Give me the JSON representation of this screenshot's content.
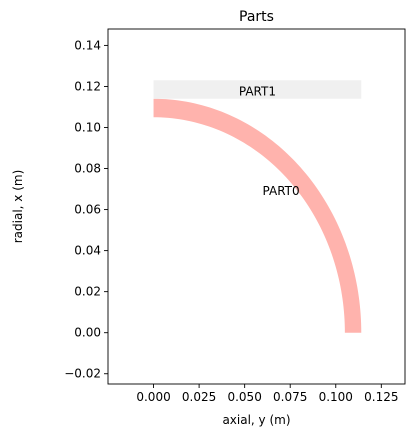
{
  "chart_data": {
    "type": "area",
    "title": "Parts",
    "xlabel": "axial, y (m)",
    "ylabel": "radial, x (m)",
    "xlim": [
      -0.025,
      0.138
    ],
    "ylim": [
      -0.025,
      0.148
    ],
    "xticks": [
      0.0,
      0.025,
      0.05,
      0.075,
      0.1,
      0.125
    ],
    "xtick_labels": [
      "0.000",
      "0.025",
      "0.050",
      "0.075",
      "0.100",
      "0.125"
    ],
    "yticks": [
      -0.02,
      0.0,
      0.02,
      0.04,
      0.06,
      0.08,
      0.1,
      0.12,
      0.14
    ],
    "ytick_labels": [
      "−0.02",
      "0.00",
      "0.02",
      "0.04",
      "0.06",
      "0.08",
      "0.10",
      "0.12",
      "0.14"
    ],
    "grid": false,
    "parts": [
      {
        "name": "PART0",
        "shape": "quarter-annulus",
        "center": [
          0.0,
          0.0
        ],
        "inner_radius": 0.105,
        "outer_radius": 0.114,
        "color": "#ffb3ad",
        "label_at": [
          0.07,
          0.069
        ]
      },
      {
        "name": "PART1",
        "shape": "rectangle",
        "y_range": [
          0.0,
          0.114
        ],
        "x_range": [
          0.114,
          0.123
        ],
        "color": "#f0f0f0",
        "label_at": [
          0.057,
          0.1175
        ]
      }
    ]
  }
}
